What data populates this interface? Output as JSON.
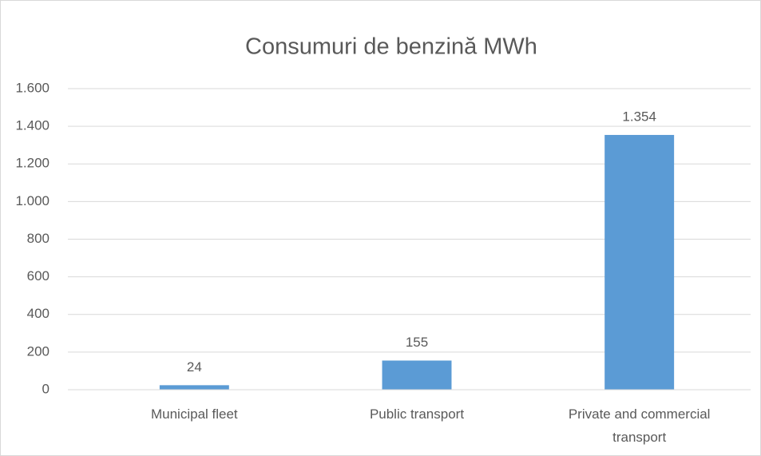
{
  "chart_data": {
    "type": "bar",
    "title": "Consumuri de benzină MWh",
    "categories": [
      "Municipal fleet",
      "Public transport",
      "Private and commercial transport"
    ],
    "values": [
      24,
      155,
      1354
    ],
    "value_labels": [
      "24",
      "155",
      "1.354"
    ],
    "color": "#5b9bd5",
    "ylim": [
      0,
      1600
    ],
    "yticks": [
      0,
      200,
      400,
      600,
      800,
      {
        "value": 1000,
        "label": "1.000"
      },
      {
        "value": 1200,
        "label": "1.200"
      },
      {
        "value": 1400,
        "label": "1.400"
      },
      {
        "value": 1600,
        "label": "1.600"
      }
    ],
    "grid": true
  }
}
